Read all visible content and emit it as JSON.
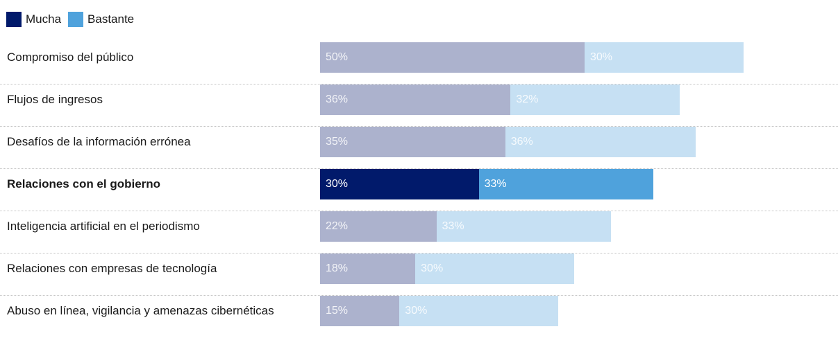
{
  "legend": {
    "mucha": {
      "label": "Mucha",
      "color": "#011a6b"
    },
    "bastante": {
      "label": "Bastante",
      "color": "#4fa2dc"
    }
  },
  "colors": {
    "mucha_highlight": "#011a6b",
    "bastante_highlight": "#4fa2dc",
    "mucha_muted": "#acb2cd",
    "bastante_muted": "#c6e0f3"
  },
  "chart_data": {
    "type": "bar",
    "orientation": "horizontal",
    "stacked": true,
    "categories": [
      "Compromiso del público",
      "Flujos de ingresos",
      "Desafíos de la información errónea",
      "Relaciones con el gobierno",
      "Inteligencia artificial en el periodismo",
      "Relaciones con empresas de tecnología",
      "Abuso en línea, vigilancia y amenazas cibernéticas"
    ],
    "series": [
      {
        "name": "Mucha",
        "values": [
          50,
          36,
          35,
          30,
          22,
          18,
          15
        ]
      },
      {
        "name": "Bastante",
        "values": [
          30,
          32,
          36,
          33,
          33,
          30,
          30
        ]
      }
    ],
    "value_labels": [
      [
        "50%",
        "30%"
      ],
      [
        "36%",
        "32%"
      ],
      [
        "35%",
        "36%"
      ],
      [
        "30%",
        "33%"
      ],
      [
        "22%",
        "33%"
      ],
      [
        "18%",
        "30%"
      ],
      [
        "15%",
        "30%"
      ]
    ],
    "highlighted_index": 3,
    "legend_position": "top-left",
    "grid": false,
    "xlim": [
      0,
      80
    ]
  }
}
